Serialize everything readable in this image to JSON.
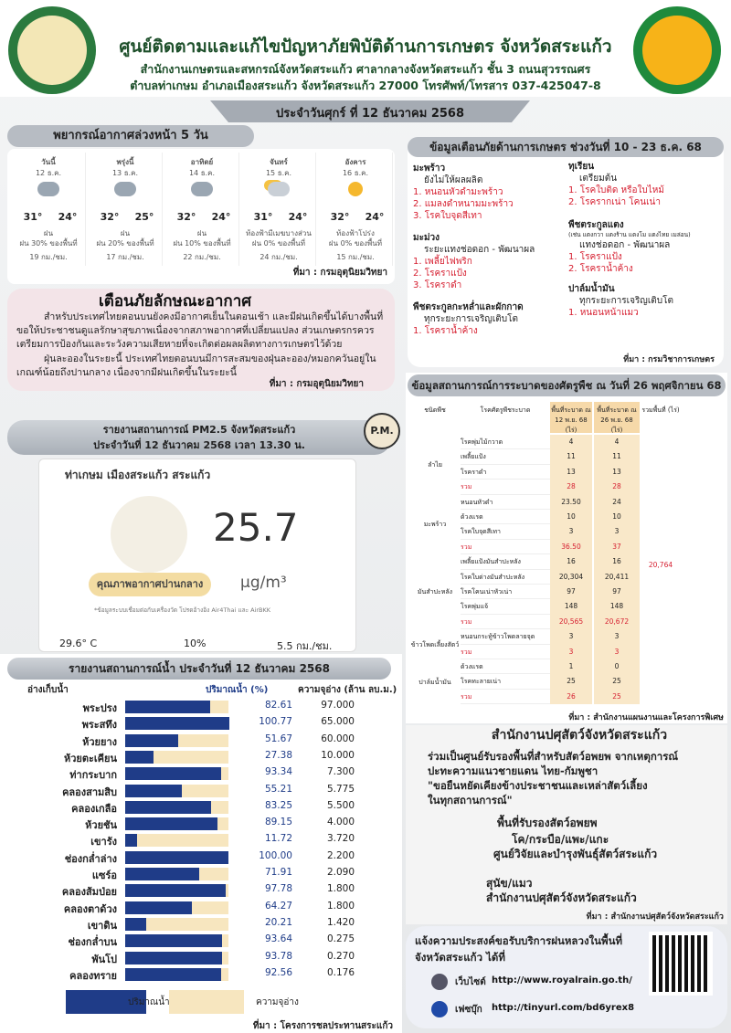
{
  "header": {
    "title": "ศูนย์ติดตามและแก้ไขปัญหาภัยพิบัติด้านการเกษตร จังหวัดสระแก้ว",
    "address1": "สำนักงานเกษตรและสหกรณ์จังหวัดสระแก้ว ศาลากลางจังหวัดสระแก้ว ชั้น 3 ถนนสุวรรณศร",
    "address2": "ตำบลท่าเกษม อำเภอเมืองสระแก้ว จังหวัดสระแก้ว 27000 โทรศัพท์/โทรสาร 037-425047-8",
    "date": "ประจำวันศุกร์ ที่ 12 ธันวาคม 2568"
  },
  "forecast": {
    "title": "พยากรณ์อากาศล่วงหน้า 5 วัน",
    "days": [
      {
        "day": "วันนี้",
        "date": "12 ธ.ค.",
        "tmax": "31°",
        "tmin": "24°",
        "desc": "ฝน",
        "rain": "ฝน 30% ของพื้นที่",
        "wind": "19 กม./ชม."
      },
      {
        "day": "พรุ่งนี้",
        "date": "13 ธ.ค.",
        "tmax": "32°",
        "tmin": "25°",
        "desc": "ฝน",
        "rain": "ฝน 20% ของพื้นที่",
        "wind": "17 กม./ชม."
      },
      {
        "day": "อาทิตย์",
        "date": "14 ธ.ค.",
        "tmax": "32°",
        "tmin": "24°",
        "desc": "ฝน",
        "rain": "ฝน 10% ของพื้นที่",
        "wind": "22 กม./ชม."
      },
      {
        "day": "จันทร์",
        "date": "15 ธ.ค.",
        "tmax": "31°",
        "tmin": "24°",
        "desc": "ท้องฟ้ามีเมฆบางส่วน",
        "rain": "ฝน 0% ของพื้นที่",
        "wind": "24 กม./ชม."
      },
      {
        "day": "อังคาร",
        "date": "16 ธ.ค.",
        "tmax": "32°",
        "tmin": "24°",
        "desc": "ท้องฟ้าโปร่ง",
        "rain": "ฝน 0% ของพื้นที่",
        "wind": "15 กม./ชม."
      }
    ],
    "source": "ที่มา : กรมอุตุนิยมวิทยา"
  },
  "warning": {
    "title": "เตือนภัยลักษณะอากาศ",
    "paragraphs": [
      "สำหรับประเทศไทยตอนบนยังคงมีอากาศเย็นในตอนเช้า และมีฝนเกิดขึ้นได้บางพื้นที่ ขอให้ประชาชนดูแลรักษาสุขภาพเนื่องจากสภาพอากาศที่เปลี่ยนแปลง ส่วนเกษตรกรควรเตรียมการป้องกันและระวังความเสียหายที่จะเกิดต่อผลผลิตทางการเกษตรไว้ด้วย",
      "ฝุ่นละอองในระยะนี้ ประเทศไทยตอนบนมีการสะสมของฝุ่นละออง/หมอกควันอยู่ในเกณฑ์น้อยถึงปานกลาง เนื่องจากมีฝนเกิดขึ้นในระยะนี้"
    ],
    "source": "ที่มา : กรมอุตุนิยมวิทยา"
  },
  "pm25": {
    "title1": "รายงานสถานการณ์ PM2.5 จังหวัดสระแก้ว",
    "title2": "ประจำวันที่ 12 ธันวาคม 2568 เวลา 13.30 น.",
    "badge": "P.M.",
    "location": "ท่าเกษม เมืองสระแก้ว สระแก้ว",
    "value": "25.7",
    "level": "คุณภาพอากาศปานกลาง",
    "unit": "μg/m³",
    "note": "*ข้อมูลระบบเชื่อมต่อกับเครื่องวัด โปรดอ้างอิง Air4Thai และ AirBKK",
    "temp": "29.6° C",
    "humidity": "10%",
    "wind": "5.5 กม./ชม."
  },
  "water": {
    "title": "รายงานสถานการณ์น้ำ ประจำวันที่ 12 ธันวาคม 2568",
    "headers": [
      "อ่างเก็บน้ำ",
      "ปริมาณน้ำ (%)",
      "ความจุอ่าง (ล้าน ลบ.ม.)"
    ],
    "rows": [
      [
        "พระปรง",
        "82.61",
        "97.000"
      ],
      [
        "พระสทึง",
        "100.77",
        "65.000"
      ],
      [
        "ห้วยยาง",
        "51.67",
        "60.000"
      ],
      [
        "ห้วยตะเคียน",
        "27.38",
        "10.000"
      ],
      [
        "ท่ากระบาก",
        "93.34",
        "7.300"
      ],
      [
        "คลองสามสิบ",
        "55.21",
        "5.775"
      ],
      [
        "คลองเกลือ",
        "83.25",
        "5.500"
      ],
      [
        "ห้วยชัน",
        "89.15",
        "4.000"
      ],
      [
        "เขารัง",
        "11.72",
        "3.720"
      ],
      [
        "ช่องกล่ำล่าง",
        "100.00",
        "2.200"
      ],
      [
        "แซร์อ",
        "71.91",
        "2.090"
      ],
      [
        "คลองส้มป่อย",
        "97.78",
        "1.800"
      ],
      [
        "คลองตาด้วง",
        "64.27",
        "1.800"
      ],
      [
        "เขาดิน",
        "20.21",
        "1.420"
      ],
      [
        "ช่องกล่ำบน",
        "93.64",
        "0.275"
      ],
      [
        "พันโป",
        "93.78",
        "0.270"
      ],
      [
        "คลองทราย",
        "92.56",
        "0.176"
      ]
    ],
    "legend": [
      "ปริมาณน้ำ",
      "ความจุอ่าง"
    ],
    "source": "ที่มา : โครงการชลประทานสระแก้ว"
  },
  "agri": {
    "title": "ข้อมูลเตือนภัยด้านการเกษตร ช่วงวันที่ 10 - 23 ธ.ค. 68",
    "items": [
      {
        "crop": "มะพร้าว",
        "stage": "ยังไม่ให้ผลผลิต",
        "problems": [
          "1. หนอนหัวดำมะพร้าว",
          "2. แมลงดำหนามมะพร้าว",
          "3. โรคใบจุดสีเทา"
        ]
      },
      {
        "crop": "ทุเรียน",
        "stage": "เตรียมต้น",
        "problems": [
          "1. โรคใบติด หรือใบไหม้",
          "2. โรครากเน่า โคนเน่า"
        ]
      },
      {
        "crop": "มะม่วง",
        "stage": "ระยะแทงช่อดอก - พัฒนาผล",
        "problems": [
          "1. เพลี้ยไฟพริก",
          "2. โรคราแป้ง",
          "3. โรคราดำ"
        ]
      },
      {
        "crop": "พืชตระกูลแตง",
        "note": "(เช่น แตงกวา แตงร้าน แตงโม แตงไทย เมล่อน)",
        "stage": "แทงช่อดอก - พัฒนาผล",
        "problems": [
          "1. โรคราแป้ง",
          "2. โรคราน้ำค้าง"
        ]
      },
      {
        "crop": "พืชตระกูลกะหล่ำและผักกาด",
        "stage": "ทุกระยะการเจริญเติบโต",
        "problems": [
          "1. โรคราน้ำค้าง"
        ]
      },
      {
        "crop": "ปาล์มน้ำมัน",
        "stage": "ทุกระยะการเจริญเติบโต",
        "problems": [
          "1. หนอนหน้าแมว"
        ]
      }
    ],
    "source": "ที่มา : กรมวิชาการเกษตร"
  },
  "pests": {
    "title": "ข้อมูลสถานการณ์การระบาดของศัตรูพืช ณ วันที่ 26 พฤศจิกายน 68",
    "headers": [
      "ชนิดพืช",
      "โรคศัตรูพืชระบาด",
      "พื้นที่ระบาด ณ 12 พ.ย. 68 (ไร่)",
      "พื้นที่ระบาด ณ 26 พ.ย. 68 (ไร่)",
      "รวมพื้นที่ (ไร่)"
    ],
    "groups": [
      {
        "crop": "ลำไย",
        "rows": [
          [
            "โรคพุ่มไม้กวาด",
            "4",
            "4"
          ],
          [
            "เพลี้ยแป้ง",
            "11",
            "11"
          ],
          [
            "โรคราดำ",
            "13",
            "13"
          ],
          [
            "รวม",
            "28",
            "28"
          ]
        ]
      },
      {
        "crop": "มะพร้าว",
        "rows": [
          [
            "หนอนหัวดำ",
            "23.50",
            "24"
          ],
          [
            "ด้วงแรด",
            "10",
            "10"
          ],
          [
            "โรคใบจุดสีเทา",
            "3",
            "3"
          ],
          [
            "รวม",
            "36.50",
            "37"
          ]
        ]
      },
      {
        "crop": "มันสำปะหลัง",
        "rows": [
          [
            "เพลี้ยแป้งมันสำปะหลัง",
            "16",
            "16"
          ],
          [
            "โรคใบด่างมันสำปะหลัง",
            "20,304",
            "20,411"
          ],
          [
            "โรคโคนเน่าหัวเน่า",
            "97",
            "97"
          ],
          [
            "โรคพุ่มแจ้",
            "148",
            "148"
          ],
          [
            "รวม",
            "20,565",
            "20,672"
          ]
        ]
      },
      {
        "crop": "ข้าวโพดเลี้ยงสัตว์",
        "rows": [
          [
            "หนอนกระทู้ข้าวโพดลายจุด",
            "3",
            "3"
          ],
          [
            "รวม",
            "3",
            "3"
          ]
        ]
      },
      {
        "crop": "ปาล์มน้ำมัน",
        "rows": [
          [
            "ด้วงแรด",
            "1",
            "0"
          ],
          [
            "โรคทะลายเน่า",
            "25",
            "25"
          ],
          [
            "รวม",
            "26",
            "25"
          ]
        ]
      }
    ],
    "total_area": "20,764",
    "source": "ที่มา : สำนักงานแผนงานและโครงการพิเศษ"
  },
  "livestock": {
    "title": "สำนักงานปศุสัตว์จังหวัดสระแก้ว",
    "lines": [
      "ร่วมเป็นศูนย์รับรองพื้นที่สำหรับสัตว์อพยพ จากเหตุการณ์",
      "ปะทะความแนวชายแดน ไทย-กัมพูชา",
      "\"ขอยืนหยัดเคียงข้างประชาชนและเหล่าสัตว์เลี้ยง",
      "ในทุกสถานการณ์\""
    ],
    "subtitle": "พื้นที่รับรองสัตว์อพยพ",
    "places": [
      "โค/กระบือ/แพะ/แกะ",
      "ศูนย์วิจัยและบำรุงพันธุ์สัตว์สระแก้ว",
      "สุนัข/แมว",
      "สำนักงานปศุสัตว์จังหวัดสระแก้ว"
    ],
    "source": "ที่มา : สำนักงานปศุสัตว์จังหวัดสระแก้ว"
  },
  "rain": {
    "lines": [
      "แจ้งความประสงค์ขอรับบริการฝนหลวงในพื้นที่",
      "จังหวัดสระแก้ว ได้ที่"
    ],
    "links": [
      {
        "label": "เว็บไซต์",
        "url": "http://www.royalrain.go.th/"
      },
      {
        "label": "เฟซบุ๊ก",
        "url": "http://tinyurl.com/bd6yrex8"
      }
    ]
  }
}
